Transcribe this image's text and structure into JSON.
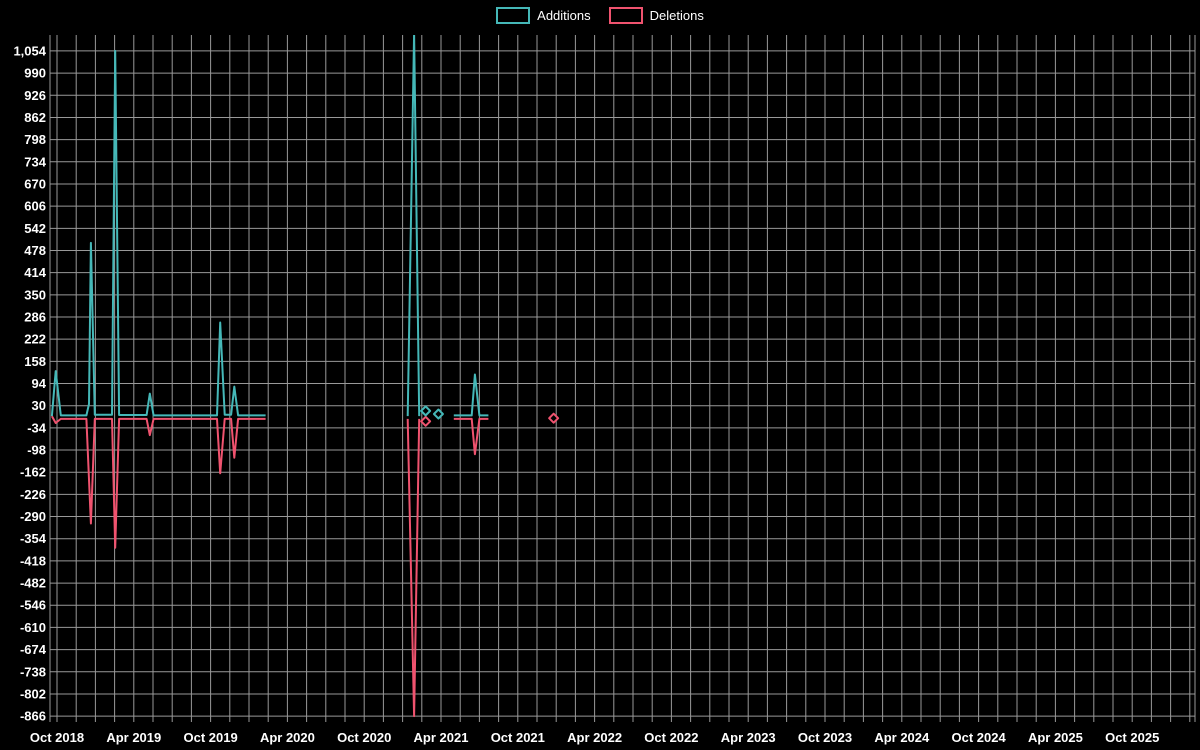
{
  "legend": [
    {
      "label": "Additions",
      "color": "#45b8b8"
    },
    {
      "label": "Deletions",
      "color": "#f0536f"
    }
  ],
  "chart_data": {
    "type": "line",
    "title": "",
    "background_color": "#000000",
    "grid_color": "#999999",
    "x_axis": {
      "tick_labels": [
        "Oct 2018",
        "Apr 2019",
        "Oct 2019",
        "Apr 2020",
        "Oct 2020",
        "Apr 2021",
        "Oct 2021",
        "Apr 2022",
        "Oct 2022",
        "Apr 2023",
        "Oct 2023",
        "Apr 2024",
        "Oct 2024",
        "Apr 2025",
        "Oct 2025"
      ],
      "tick_months": [
        0,
        6,
        12,
        18,
        24,
        30,
        36,
        42,
        48,
        54,
        60,
        66,
        72,
        78,
        84
      ]
    },
    "y_axis": {
      "tick_values": [
        1054,
        990,
        926,
        862,
        798,
        734,
        670,
        606,
        542,
        478,
        414,
        350,
        286,
        222,
        158,
        94,
        30,
        -34,
        -98,
        -162,
        -226,
        -290,
        -354,
        -418,
        -482,
        -546,
        -610,
        -674,
        -738,
        -802,
        -866
      ],
      "tick_labels": [
        "1,054",
        "990",
        "926",
        "862",
        "798",
        "734",
        "670",
        "606",
        "542",
        "478",
        "414",
        "350",
        "286",
        "222",
        "158",
        "94",
        "30",
        "-34",
        "-98",
        "-162",
        "-226",
        "-290",
        "-354",
        "-418",
        "-482",
        "-546",
        "-610",
        "-674",
        "-738",
        "-802",
        "-866"
      ],
      "range": [
        -883,
        1100
      ]
    },
    "series": [
      {
        "name": "Additions",
        "color": "#45b8b8",
        "segments": [
          [
            [
              -0.4,
              0
            ],
            [
              -0.1,
              130
            ],
            [
              0.3,
              2
            ],
            [
              2.3,
              2
            ],
            [
              2.5,
              35
            ],
            [
              2.65,
              500
            ],
            [
              2.95,
              4
            ],
            [
              4.3,
              4
            ],
            [
              4.55,
              1054
            ],
            [
              4.85,
              3
            ],
            [
              7.0,
              3
            ],
            [
              7.25,
              65
            ],
            [
              7.55,
              2
            ],
            [
              12.5,
              2
            ],
            [
              12.75,
              270
            ],
            [
              13.1,
              4
            ],
            [
              13.6,
              4
            ],
            [
              13.85,
              85
            ],
            [
              14.15,
              2
            ],
            [
              16.3,
              2
            ]
          ],
          [
            [
              27.4,
              0
            ],
            [
              27.9,
              1105
            ],
            [
              28.3,
              0
            ]
          ],
          [
            [
              31.0,
              2
            ],
            [
              32.4,
              2
            ],
            [
              32.65,
              120
            ],
            [
              33.0,
              2
            ],
            [
              33.7,
              2
            ]
          ]
        ],
        "isolated_points": [
          [
            28.8,
            15
          ],
          [
            29.8,
            6
          ]
        ]
      },
      {
        "name": "Deletions",
        "color": "#f0536f",
        "segments": [
          [
            [
              -0.4,
              0
            ],
            [
              -0.1,
              -20
            ],
            [
              0.3,
              -8
            ],
            [
              2.3,
              -8
            ],
            [
              2.65,
              -310
            ],
            [
              2.95,
              -8
            ],
            [
              4.3,
              -8
            ],
            [
              4.55,
              -380
            ],
            [
              4.85,
              -8
            ],
            [
              7.0,
              -8
            ],
            [
              7.25,
              -55
            ],
            [
              7.55,
              -8
            ],
            [
              12.5,
              -8
            ],
            [
              12.75,
              -165
            ],
            [
              13.1,
              -8
            ],
            [
              13.6,
              -8
            ],
            [
              13.85,
              -120
            ],
            [
              14.15,
              -8
            ],
            [
              16.3,
              -8
            ]
          ],
          [
            [
              27.4,
              -8
            ],
            [
              27.9,
              -866
            ],
            [
              28.3,
              -8
            ]
          ],
          [
            [
              31.0,
              -8
            ],
            [
              32.4,
              -8
            ],
            [
              32.65,
              -110
            ],
            [
              33.0,
              -8
            ],
            [
              33.7,
              -8
            ]
          ]
        ],
        "isolated_points": [
          [
            28.8,
            -15
          ],
          [
            38.8,
            -6
          ]
        ]
      }
    ]
  }
}
